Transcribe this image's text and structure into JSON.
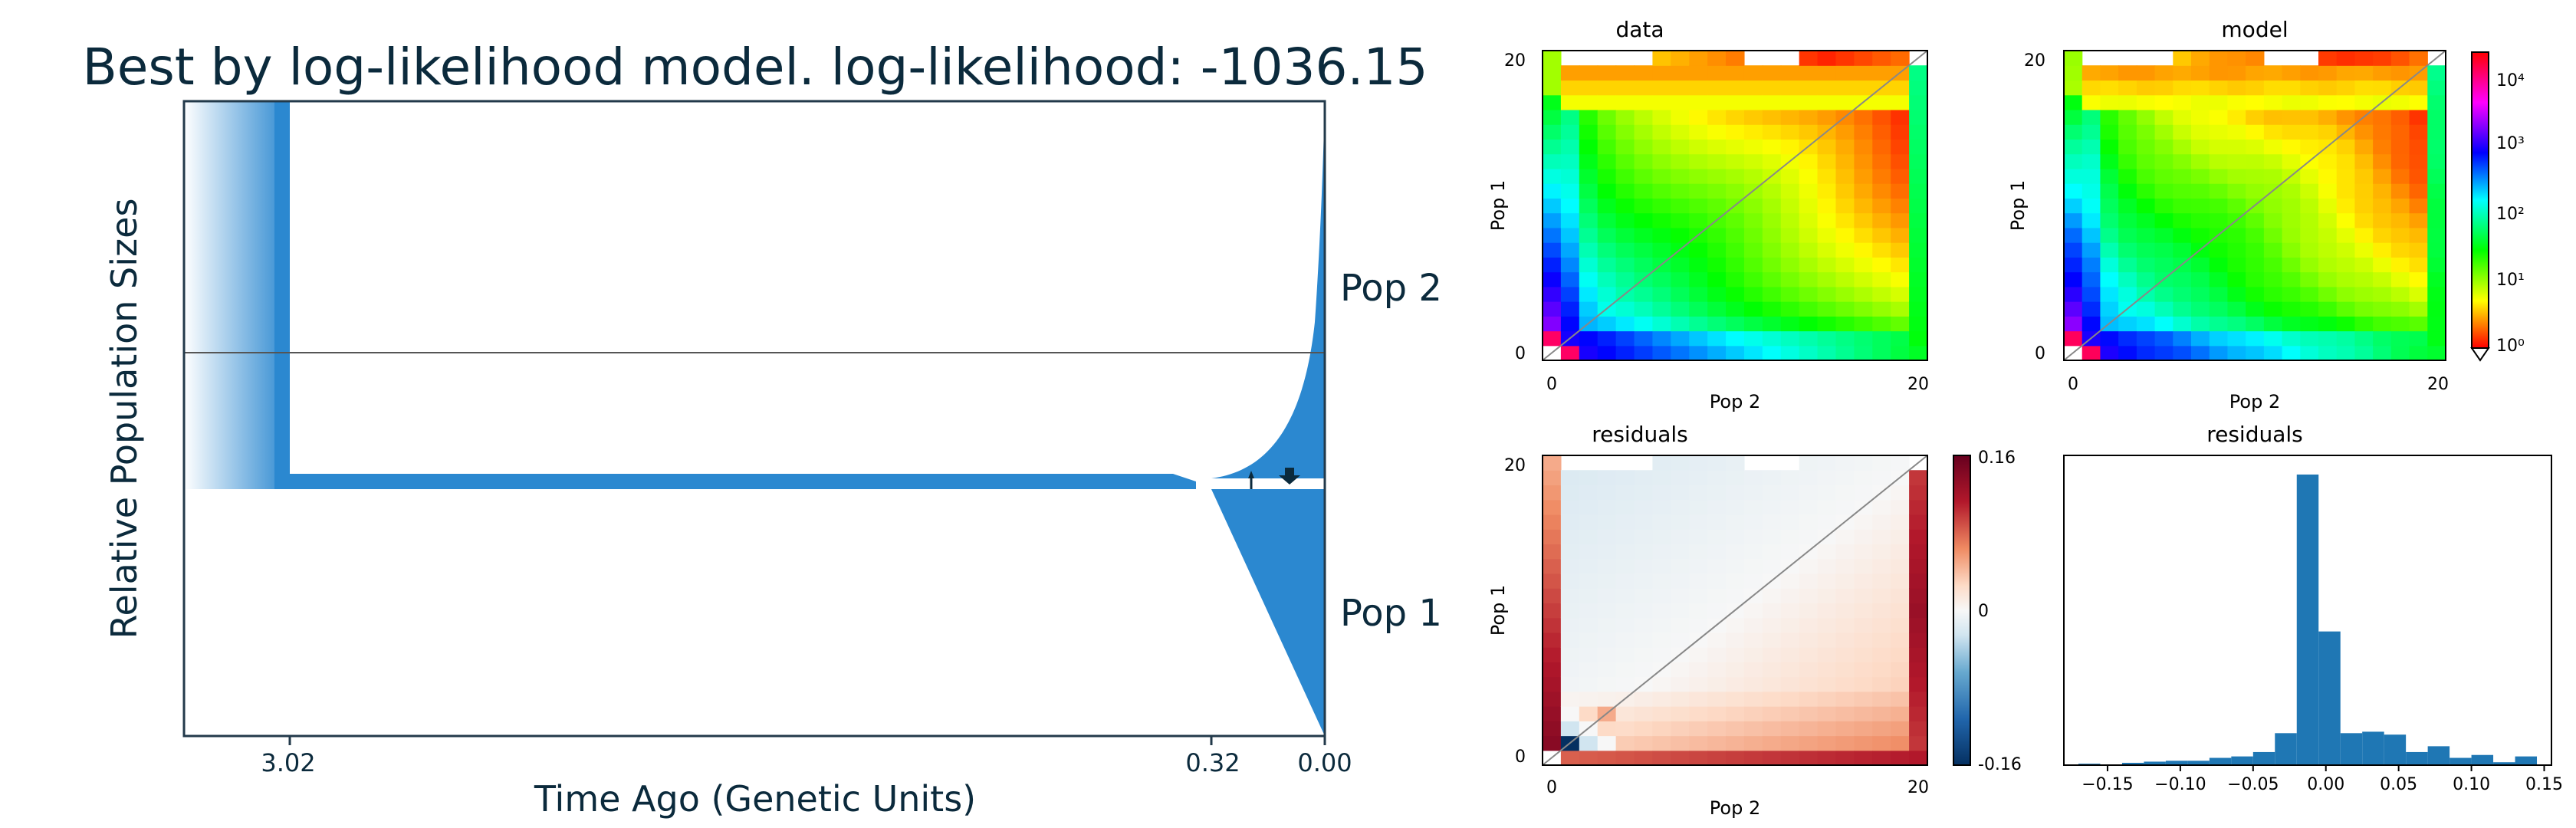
{
  "left_panel": {
    "title": "Best by log-likelihood model. log-likelihood: -1036.15",
    "xlabel": "Time Ago (Genetic Units)",
    "ylabel": "Relative Population Sizes",
    "pop_labels": [
      "Pop 2",
      "Pop 1"
    ]
  },
  "colors": {
    "pop_fill": "#2b88d0",
    "text": "#0b2a3c",
    "axis": "#22394a",
    "hist_bar": "#1f77b4"
  },
  "chart_data": [
    {
      "type": "area",
      "title": "Best by log-likelihood model. log-likelihood: -1036.15",
      "xlabel": "Time Ago (Genetic Units)",
      "ylabel": "Relative Population Sizes",
      "x_ticks": [
        "3.02",
        "0.32",
        "0.00"
      ],
      "events": [
        {
          "time": 3.02,
          "label": "3.02"
        },
        {
          "time": 0.32,
          "label": "0.32"
        },
        {
          "time": 0.0,
          "label": "0.00"
        }
      ],
      "series": [
        {
          "name": "Pop 2",
          "values": []
        },
        {
          "name": "Pop 1",
          "values": []
        }
      ]
    },
    {
      "type": "heatmap",
      "title": "data",
      "xlabel": "Pop 2",
      "ylabel": "Pop 1",
      "x_ticks": [
        "0",
        "20"
      ],
      "y_ticks": [
        "0",
        "20"
      ],
      "grid_size": 21,
      "scale": "log"
    },
    {
      "type": "heatmap",
      "title": "model",
      "xlabel": "Pop 2",
      "ylabel": "Pop 1",
      "x_ticks": [
        "0",
        "20"
      ],
      "y_ticks": [
        "0",
        "20"
      ],
      "grid_size": 21,
      "scale": "log",
      "colorbar_ticks": [
        "10⁰",
        "10¹",
        "10²",
        "10³",
        "10⁴"
      ]
    },
    {
      "type": "heatmap",
      "title": "residuals",
      "xlabel": "Pop 2",
      "ylabel": "Pop 1",
      "x_ticks": [
        "0",
        "20"
      ],
      "y_ticks": [
        "0",
        "20"
      ],
      "grid_size": 21,
      "colorbar_ticks": [
        "0.16",
        "0",
        "-0.16"
      ],
      "vlim": [
        -0.16,
        0.16
      ]
    },
    {
      "type": "bar",
      "title": "residuals",
      "x_ticks": [
        "−0.15",
        "−0.10",
        "−0.05",
        "0.00",
        "0.05",
        "0.10",
        "0.15"
      ],
      "xlim": [
        -0.18,
        0.155
      ],
      "bins": [
        {
          "x0": -0.17,
          "x1": -0.155,
          "count": 0.5
        },
        {
          "x0": -0.155,
          "x1": -0.14,
          "count": 0
        },
        {
          "x0": -0.14,
          "x1": -0.125,
          "count": 0.8
        },
        {
          "x0": -0.125,
          "x1": -0.11,
          "count": 1.2
        },
        {
          "x0": -0.11,
          "x1": -0.095,
          "count": 1.5
        },
        {
          "x0": -0.095,
          "x1": -0.08,
          "count": 1.5
        },
        {
          "x0": -0.08,
          "x1": -0.065,
          "count": 2.5
        },
        {
          "x0": -0.065,
          "x1": -0.05,
          "count": 3
        },
        {
          "x0": -0.05,
          "x1": -0.035,
          "count": 4.5
        },
        {
          "x0": -0.035,
          "x1": -0.02,
          "count": 11
        },
        {
          "x0": -0.02,
          "x1": -0.005,
          "count": 100
        },
        {
          "x0": -0.005,
          "x1": 0.01,
          "count": 46
        },
        {
          "x0": 0.01,
          "x1": 0.025,
          "count": 11
        },
        {
          "x0": 0.025,
          "x1": 0.04,
          "count": 11.5
        },
        {
          "x0": 0.04,
          "x1": 0.055,
          "count": 10.5
        },
        {
          "x0": 0.055,
          "x1": 0.07,
          "count": 4.5
        },
        {
          "x0": 0.07,
          "x1": 0.085,
          "count": 6.5
        },
        {
          "x0": 0.085,
          "x1": 0.1,
          "count": 2.5
        },
        {
          "x0": 0.1,
          "x1": 0.115,
          "count": 3.5
        },
        {
          "x0": 0.115,
          "x1": 0.13,
          "count": 1
        },
        {
          "x0": 0.13,
          "x1": 0.145,
          "count": 3
        }
      ]
    }
  ]
}
